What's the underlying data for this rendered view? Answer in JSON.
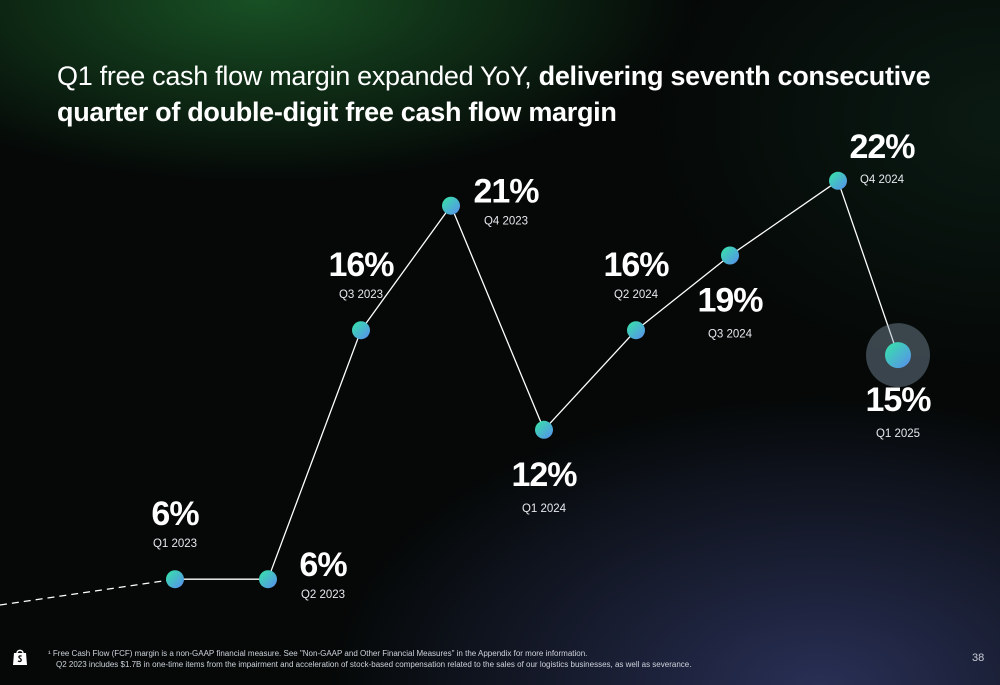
{
  "title": {
    "light": "Q1 free cash flow margin expanded YoY, ",
    "bold": "delivering seventh consecutive quarter of double-digit free cash flow margin"
  },
  "chart_data": {
    "type": "line",
    "categories": [
      "Q1 2023",
      "Q2 2023",
      "Q3 2023",
      "Q4 2023",
      "Q1 2024",
      "Q2 2024",
      "Q3 2024",
      "Q4 2024",
      "Q1 2025"
    ],
    "values": [
      6,
      6,
      16,
      21,
      12,
      16,
      19,
      22,
      15
    ],
    "value_labels": [
      "6%",
      "6%",
      "16%",
      "21%",
      "12%",
      "16%",
      "19%",
      "22%",
      "15%"
    ],
    "ylim": [
      0,
      25
    ],
    "grid": false,
    "highlighted_point": "Q1 2025",
    "colors": {
      "line": "#ffffff",
      "marker_start": "#35e6a5",
      "marker_end": "#5a8cf0",
      "halo": "#8aa0b4"
    }
  },
  "footnote": {
    "line1": "¹ Free Cash Flow (FCF) margin is a non-GAAP financial measure. See \"Non-GAAP and Other Financial Measures\" in the Appendix for more information.",
    "line2": "Q2 2023 includes $1.7B in one-time items from the impairment and acceleration of stock-based compensation related to the sales of our logistics businesses, as well as severance."
  },
  "page_number": "38"
}
